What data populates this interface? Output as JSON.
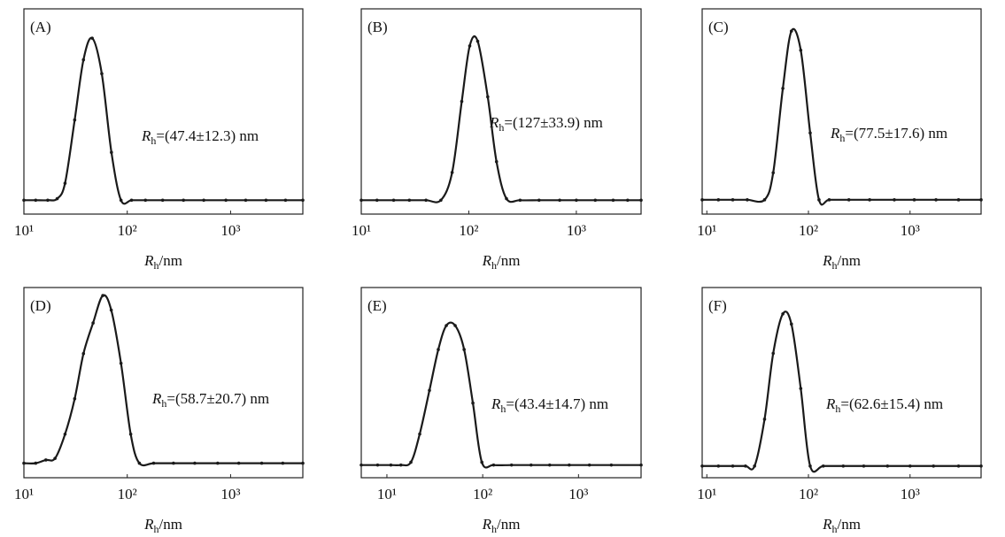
{
  "chart_data": [
    {
      "type": "line",
      "panel_label": "(A)",
      "log_x": true,
      "markers": true,
      "color": "#1a1a1a",
      "annotation": {
        "symbol": "R",
        "subscript": "h",
        "text": "=(47.4±12.3) nm"
      },
      "x_label": {
        "symbol": "R",
        "subscript": "h",
        "text": "/nm"
      },
      "xlim": [
        10,
        5000
      ],
      "ylim": [
        -0.09,
        1.24
      ],
      "xticks": [
        {
          "value": 10,
          "label": "10¹"
        },
        {
          "value": 100,
          "label": "10²"
        },
        {
          "value": 1000,
          "label": "10³"
        }
      ],
      "x": [
        10,
        13,
        17,
        21,
        25,
        31,
        37.7,
        45.8,
        56.7,
        70.3,
        87,
        110,
        150,
        220,
        350,
        550,
        900,
        1400,
        2200,
        3400,
        5000
      ],
      "values": [
        0,
        0,
        0,
        0.01,
        0.11,
        0.52,
        0.91,
        1.05,
        0.82,
        0.31,
        0.0,
        0,
        0,
        0,
        0,
        0,
        0,
        0,
        0,
        0,
        0
      ]
    },
    {
      "type": "line",
      "panel_label": "(B)",
      "log_x": true,
      "markers": true,
      "color": "#1a1a1a",
      "annotation": {
        "symbol": "R",
        "subscript": "h",
        "text": "=(127±33.9) nm"
      },
      "x_label": {
        "symbol": "R",
        "subscript": "h",
        "text": "/nm"
      },
      "xlim": [
        10,
        4000
      ],
      "ylim": [
        -0.09,
        1.24
      ],
      "xticks": [
        {
          "value": 10,
          "label": "10¹"
        },
        {
          "value": 100,
          "label": "10²"
        },
        {
          "value": 1000,
          "label": "10³"
        }
      ],
      "x": [
        10,
        14,
        20,
        28,
        40,
        55,
        70,
        86,
        102,
        121,
        150,
        181,
        224,
        300,
        450,
        700,
        1000,
        1500,
        2200,
        3000,
        4000
      ],
      "values": [
        0,
        0,
        0,
        0,
        0,
        0.0,
        0.18,
        0.64,
        1.0,
        1.03,
        0.67,
        0.25,
        0.01,
        0,
        0,
        0,
        0,
        0,
        0,
        0,
        0
      ]
    },
    {
      "type": "line",
      "panel_label": "(C)",
      "log_x": true,
      "markers": true,
      "color": "#1a1a1a",
      "annotation": {
        "symbol": "R",
        "subscript": "h",
        "text": "=(77.5±17.6) nm"
      },
      "x_label": {
        "symbol": "R",
        "subscript": "h",
        "text": "/nm"
      },
      "xlim": [
        9,
        5000
      ],
      "ylim": [
        -0.09,
        1.2
      ],
      "xticks": [
        {
          "value": 10,
          "label": "10¹"
        },
        {
          "value": 100,
          "label": "10²"
        },
        {
          "value": 1000,
          "label": "10³"
        }
      ],
      "x": [
        9,
        13,
        18,
        25,
        37,
        45,
        56,
        68,
        84,
        104,
        127,
        160,
        250,
        400,
        700,
        1100,
        1800,
        3000,
        5000
      ],
      "values": [
        0,
        0,
        0,
        0,
        0.0,
        0.17,
        0.7,
        1.06,
        0.94,
        0.42,
        0.0,
        0,
        0,
        0,
        0,
        0,
        0,
        0,
        0
      ]
    },
    {
      "type": "line",
      "panel_label": "(D)",
      "log_x": true,
      "markers": true,
      "color": "#1a1a1a",
      "annotation": {
        "symbol": "R",
        "subscript": "h",
        "text": "=(58.7±20.7) nm"
      },
      "x_label": {
        "symbol": "R",
        "subscript": "h",
        "text": "/nm"
      },
      "xlim": [
        10,
        5000
      ],
      "ylim": [
        -0.09,
        1.09
      ],
      "xticks": [
        {
          "value": 10,
          "label": "10¹"
        },
        {
          "value": 100,
          "label": "10²"
        },
        {
          "value": 1000,
          "label": "10³"
        }
      ],
      "x": [
        10,
        13,
        16.3,
        20,
        25,
        31,
        37.7,
        46.7,
        58,
        70,
        87,
        108,
        131,
        180,
        280,
        450,
        750,
        1200,
        2000,
        3200,
        5000
      ],
      "values": [
        0,
        0,
        0.02,
        0.03,
        0.18,
        0.4,
        0.68,
        0.87,
        1.04,
        0.95,
        0.62,
        0.18,
        0.0,
        0,
        0,
        0,
        0,
        0,
        0,
        0,
        0
      ]
    },
    {
      "type": "line",
      "panel_label": "(E)",
      "log_x": true,
      "markers": true,
      "color": "#1a1a1a",
      "annotation": {
        "symbol": "R",
        "subscript": "h",
        "text": "=(43.4±14.7) nm"
      },
      "x_label": {
        "symbol": "R",
        "subscript": "h",
        "text": "/nm"
      },
      "xlim": [
        5.4,
        4500
      ],
      "ylim": [
        -0.09,
        1.26
      ],
      "xticks": [
        {
          "value": 10,
          "label": "10¹"
        },
        {
          "value": 100,
          "label": "10²"
        },
        {
          "value": 1000,
          "label": "10³"
        }
      ],
      "x": [
        5.4,
        8,
        11,
        14,
        17.8,
        22,
        27.8,
        34.4,
        41.7,
        51.6,
        64,
        79,
        98,
        130,
        200,
        320,
        500,
        800,
        1300,
        2200,
        4500
      ],
      "values": [
        0,
        0,
        0,
        0,
        0.02,
        0.22,
        0.53,
        0.82,
        0.99,
        0.99,
        0.82,
        0.44,
        0.02,
        0,
        0,
        0,
        0,
        0,
        0,
        0,
        0
      ]
    },
    {
      "type": "line",
      "panel_label": "(F)",
      "log_x": true,
      "markers": true,
      "color": "#1a1a1a",
      "annotation": {
        "symbol": "R",
        "subscript": "h",
        "text": "=(62.6±15.4) nm"
      },
      "x_label": {
        "symbol": "R",
        "subscript": "h",
        "text": "/nm"
      },
      "xlim": [
        9,
        5000
      ],
      "ylim": [
        -0.08,
        1.22
      ],
      "xticks": [
        {
          "value": 10,
          "label": "10¹"
        },
        {
          "value": 100,
          "label": "10²"
        },
        {
          "value": 1000,
          "label": "10³"
        }
      ],
      "x": [
        9,
        13,
        18,
        24,
        29.5,
        37,
        45,
        56,
        68,
        84,
        104,
        140,
        220,
        350,
        600,
        1000,
        1700,
        3000,
        5000
      ],
      "values": [
        0,
        0,
        0,
        0,
        0.0,
        0.32,
        0.77,
        1.04,
        0.97,
        0.53,
        0.0,
        0,
        0,
        0,
        0,
        0,
        0,
        0,
        0
      ]
    }
  ]
}
